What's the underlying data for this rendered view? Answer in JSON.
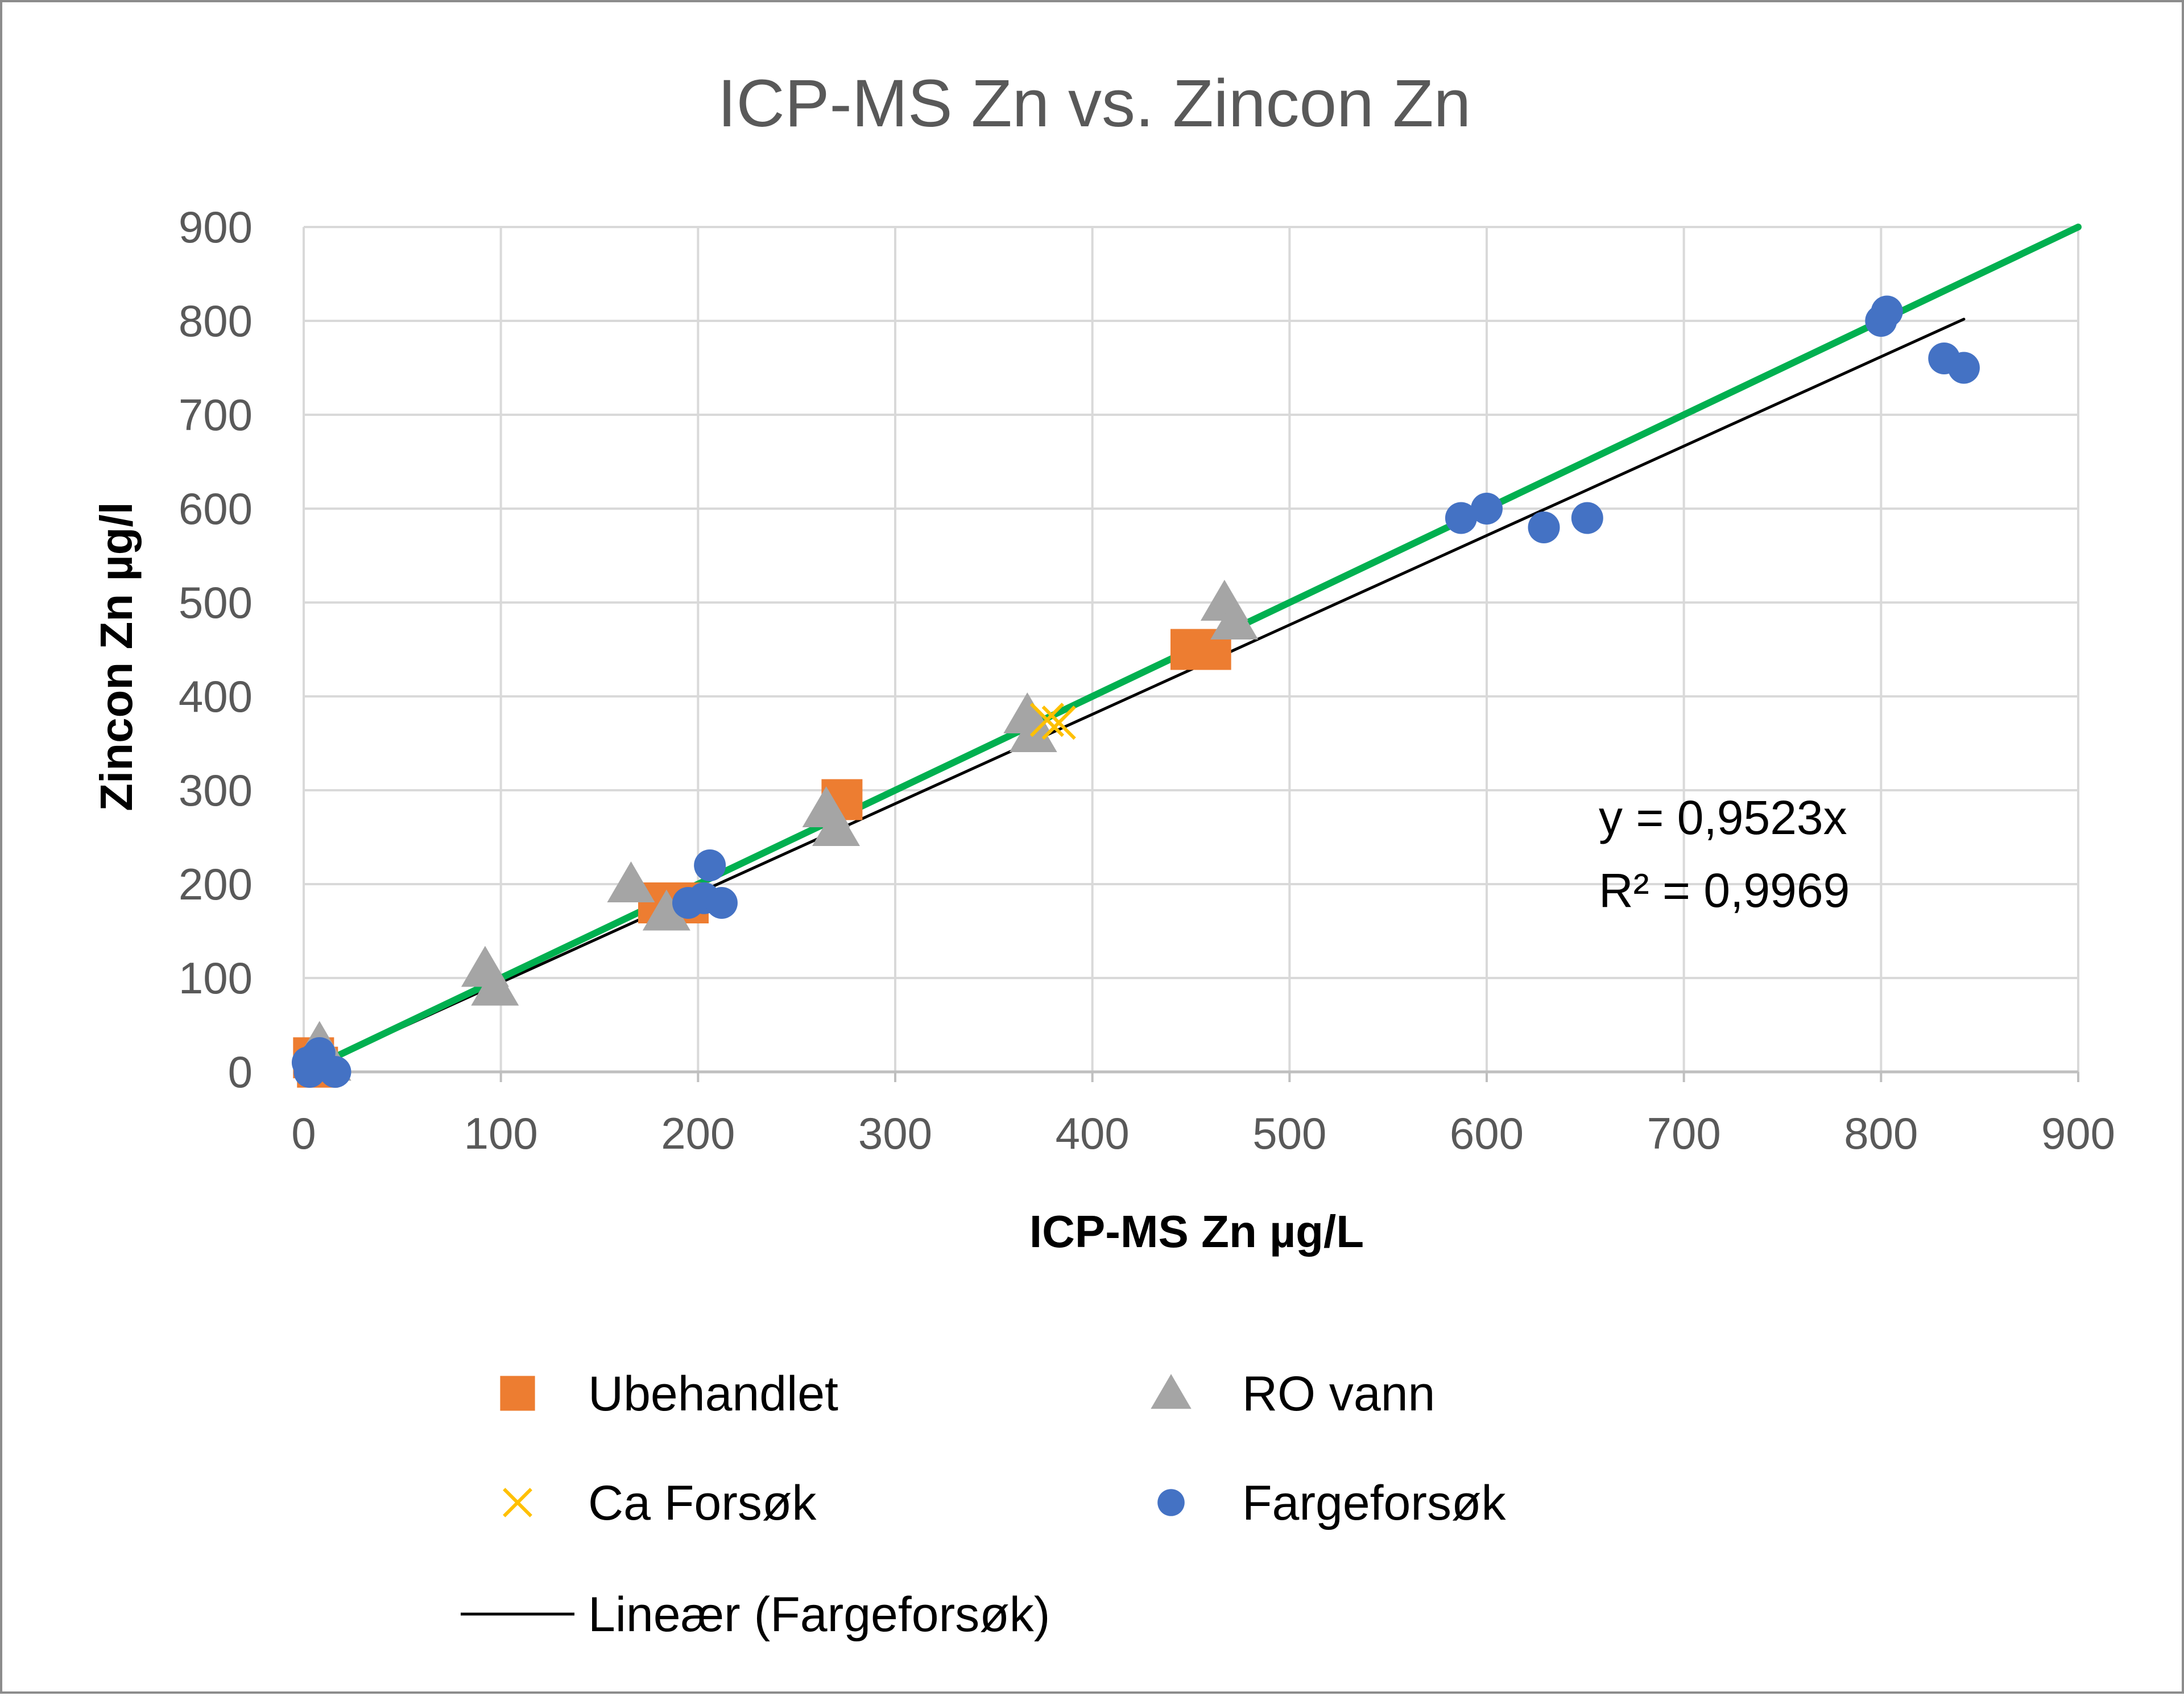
{
  "chart_data": {
    "type": "scatter",
    "title": "ICP-MS Zn vs. Zincon Zn",
    "xlabel": "ICP-MS Zn µg/L",
    "ylabel": "Zincon Zn µg/l",
    "xlim": [
      0,
      900
    ],
    "ylim": [
      0,
      900
    ],
    "xticks": [
      0,
      100,
      200,
      300,
      400,
      500,
      600,
      700,
      800,
      900
    ],
    "yticks": [
      0,
      100,
      200,
      300,
      400,
      500,
      600,
      700,
      800,
      900
    ],
    "grid": true,
    "legend_position": "bottom",
    "series": [
      {
        "name": "Ubehandlet",
        "marker": "square",
        "color": "#ed7d31",
        "points": [
          [
            5,
            15
          ],
          [
            7,
            5
          ],
          [
            180,
            180
          ],
          [
            195,
            180
          ],
          [
            273,
            290
          ],
          [
            450,
            450
          ],
          [
            460,
            450
          ]
        ]
      },
      {
        "name": "RO vann",
        "marker": "triangle",
        "color": "#a5a5a5",
        "points": [
          [
            8,
            30
          ],
          [
            12,
            10
          ],
          [
            92,
            110
          ],
          [
            97,
            90
          ],
          [
            166,
            200
          ],
          [
            184,
            170
          ],
          [
            265,
            280
          ],
          [
            270,
            260
          ],
          [
            367,
            380
          ],
          [
            370,
            360
          ],
          [
            467,
            500
          ],
          [
            472,
            480
          ]
        ]
      },
      {
        "name": "Ca Forsøk",
        "marker": "x",
        "color": "#ffc000",
        "points": [
          [
            377,
            375
          ],
          [
            383,
            372
          ]
        ]
      },
      {
        "name": "Fargeforsøk",
        "marker": "circle",
        "color": "#4472c4",
        "points": [
          [
            2,
            10
          ],
          [
            3,
            0
          ],
          [
            6,
            15
          ],
          [
            8,
            20
          ],
          [
            16,
            0
          ],
          [
            195,
            180
          ],
          [
            203,
            185
          ],
          [
            206,
            220
          ],
          [
            212,
            180
          ],
          [
            587,
            590
          ],
          [
            600,
            600
          ],
          [
            629,
            580
          ],
          [
            651,
            590
          ],
          [
            800,
            800
          ],
          [
            803,
            810
          ],
          [
            832,
            760
          ],
          [
            842,
            750
          ]
        ]
      }
    ],
    "trendlines": [
      {
        "name": "Lineær (Fargeforsøk)",
        "color": "#000000",
        "slope": 0.9523,
        "x_range": [
          0,
          842
        ],
        "in_legend": true
      },
      {
        "name": "y = x",
        "color": "#00b050",
        "slope": 1,
        "x_range": [
          0,
          900
        ],
        "in_legend": false
      }
    ],
    "annotations": {
      "equation": "y = 0,9523x",
      "r_squared": "R² = 0,9969"
    },
    "legend": [
      {
        "label": "Ubehandlet",
        "marker": "square",
        "color": "#ed7d31"
      },
      {
        "label": "RO vann",
        "marker": "triangle",
        "color": "#a5a5a5"
      },
      {
        "label": "Ca Forsøk",
        "marker": "x",
        "color": "#ffc000"
      },
      {
        "label": "Fargeforsøk",
        "marker": "circle",
        "color": "#4472c4"
      },
      {
        "label": "Lineær (Fargeforsøk)",
        "marker": "line",
        "color": "#000000"
      }
    ]
  }
}
